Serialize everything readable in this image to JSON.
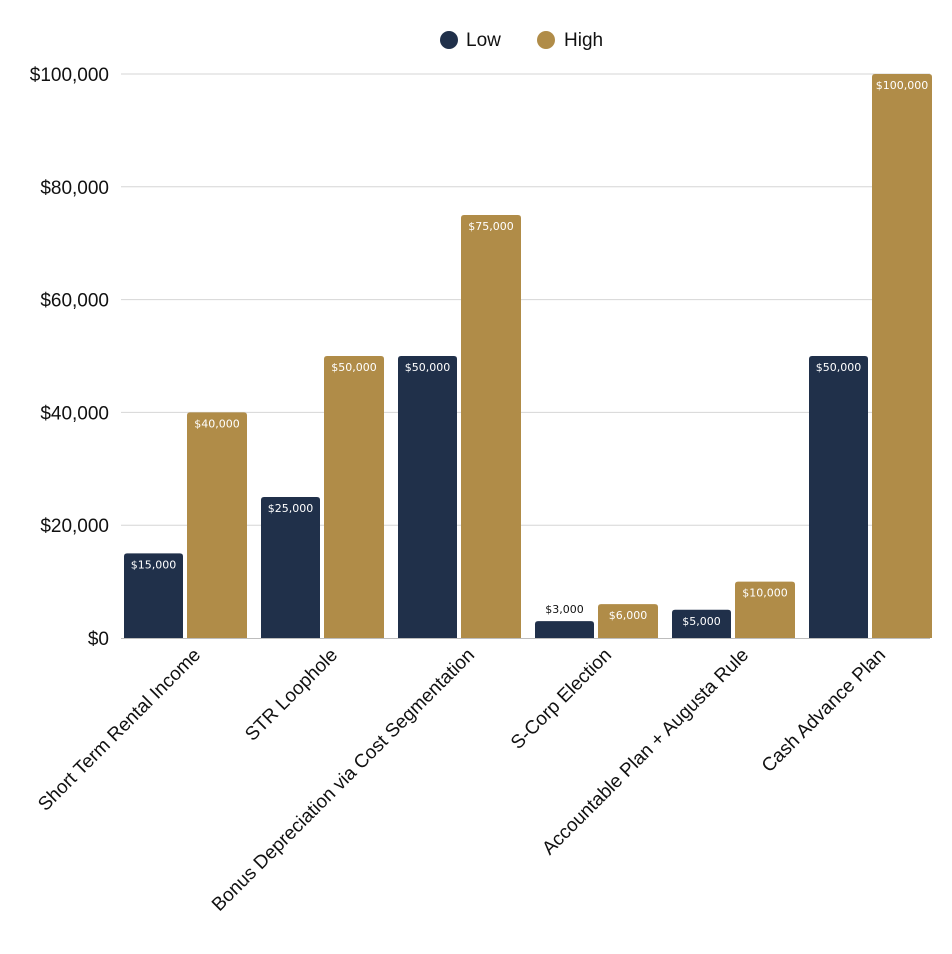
{
  "chart_data": {
    "type": "bar",
    "title": "",
    "xlabel": "",
    "ylabel": "",
    "ylim": [
      0,
      100000
    ],
    "yticks": [
      0,
      20000,
      40000,
      60000,
      80000,
      100000
    ],
    "ytick_labels": [
      "$0",
      "$20,000",
      "$40,000",
      "$60,000",
      "$80,000",
      "$100,000"
    ],
    "grid": true,
    "legend_position": "top-center",
    "categories": [
      "Short Term Rental Income",
      "STR Loophole",
      "Bonus Depreciation via Cost Segmentation",
      "S-Corp Election",
      "Accountable Plan + Augusta Rule",
      "Cash Advance Plan"
    ],
    "series": [
      {
        "name": "Low",
        "color": "#20304a",
        "values": [
          15000,
          25000,
          50000,
          3000,
          5000,
          50000
        ],
        "labels": [
          "$15,000",
          "$25,000",
          "$50,000",
          "$3,000",
          "$5,000",
          "$50,000"
        ]
      },
      {
        "name": "High",
        "color": "#b08c48",
        "values": [
          40000,
          50000,
          75000,
          6000,
          10000,
          100000
        ],
        "labels": [
          "$40,000",
          "$50,000",
          "$75,000",
          "$6,000",
          "$10,000",
          "$100,000"
        ]
      }
    ]
  }
}
